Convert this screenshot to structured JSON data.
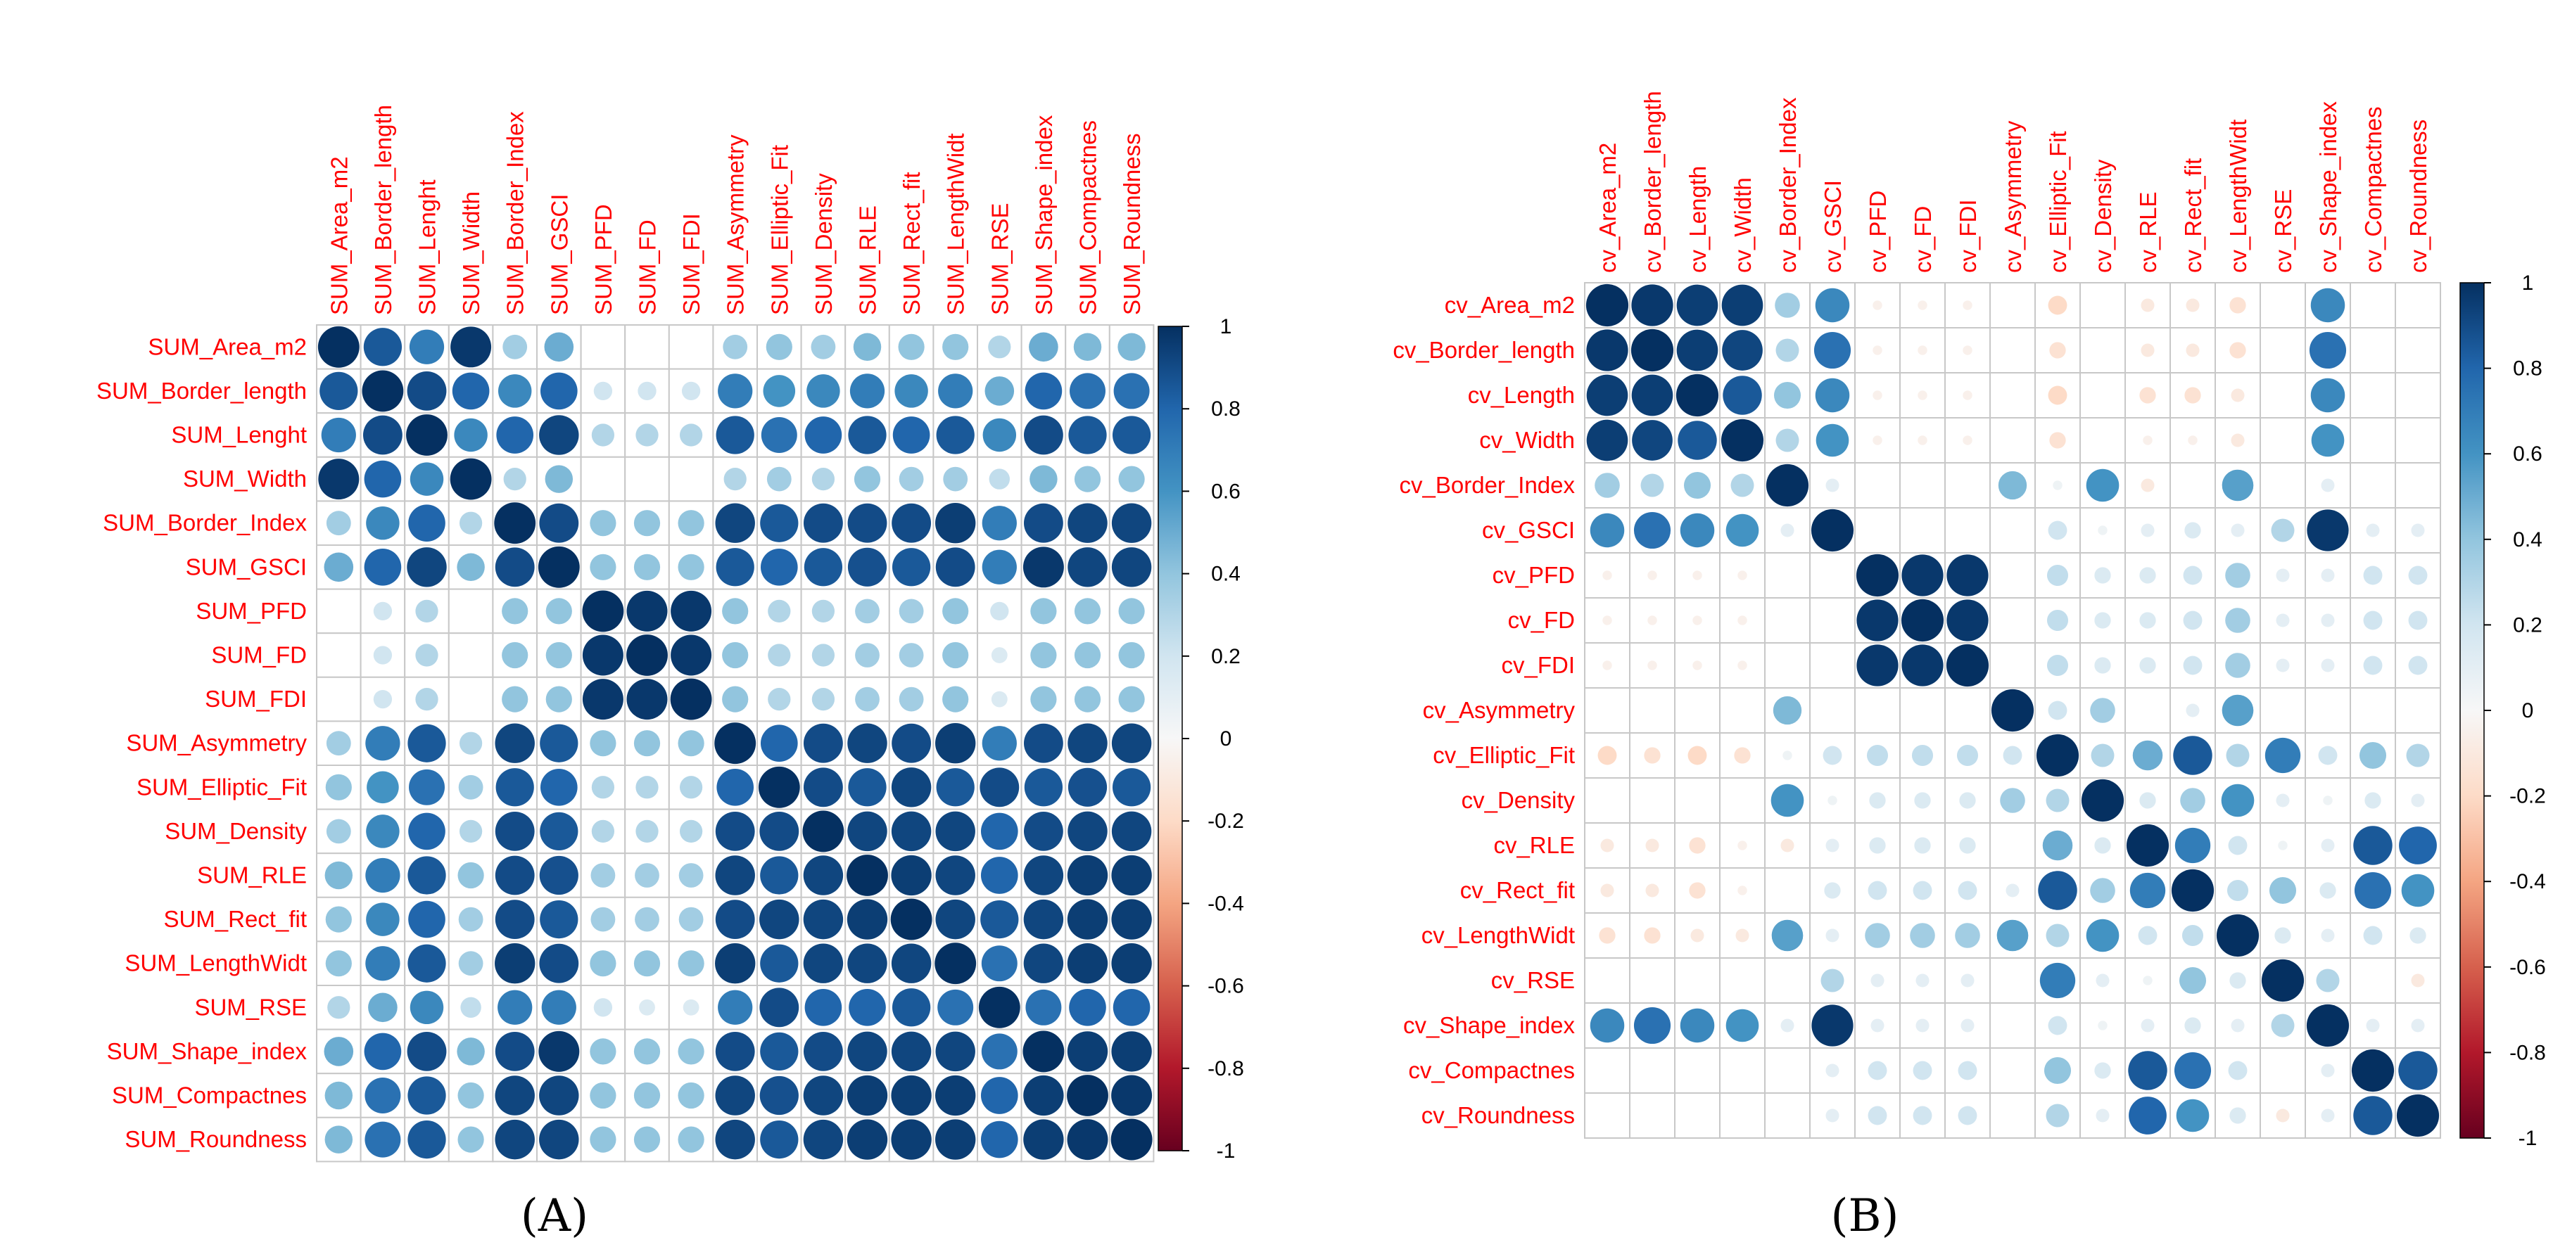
{
  "chart_data": [
    {
      "type": "heatmap",
      "panel_label": "(A)",
      "variables": [
        "SUM_Area_m2",
        "SUM_Border_length",
        "SUM_Lenght",
        "SUM_Width",
        "SUM_Border_Index",
        "SUM_GSCI",
        "SUM_PFD",
        "SUM_FD",
        "SUM_FDI",
        "SUM_Asymmetry",
        "SUM_Elliptic_Fit",
        "SUM_Density",
        "SUM_RLE",
        "SUM_Rect_fit",
        "SUM_LengthWidt",
        "SUM_RSE",
        "SUM_Shape_index",
        "SUM_Compactnes",
        "SUM_Roundness"
      ],
      "colorbar_ticks": [
        "1",
        "0.8",
        "0.6",
        "0.4",
        "0.2",
        "0",
        "-0.2",
        "-0.4",
        "-0.6",
        "-0.8",
        "-1"
      ],
      "value_range": [
        -1,
        1
      ],
      "matrix": [
        [
          1.0,
          0.85,
          0.7,
          0.97,
          0.35,
          0.5,
          0.0,
          0.0,
          0.0,
          0.35,
          0.4,
          0.35,
          0.45,
          0.4,
          0.4,
          0.3,
          0.5,
          0.45,
          0.45
        ],
        [
          0.85,
          1.0,
          0.9,
          0.8,
          0.65,
          0.8,
          0.2,
          0.2,
          0.2,
          0.7,
          0.6,
          0.65,
          0.7,
          0.65,
          0.7,
          0.5,
          0.8,
          0.75,
          0.75
        ],
        [
          0.7,
          0.9,
          1.0,
          0.65,
          0.8,
          0.92,
          0.3,
          0.3,
          0.3,
          0.85,
          0.75,
          0.8,
          0.85,
          0.8,
          0.85,
          0.65,
          0.9,
          0.85,
          0.85
        ],
        [
          0.97,
          0.8,
          0.65,
          1.0,
          0.3,
          0.45,
          0.0,
          0.0,
          0.0,
          0.3,
          0.35,
          0.3,
          0.4,
          0.35,
          0.35,
          0.25,
          0.45,
          0.4,
          0.4
        ],
        [
          0.35,
          0.65,
          0.8,
          0.3,
          1.0,
          0.9,
          0.4,
          0.4,
          0.4,
          0.92,
          0.85,
          0.9,
          0.9,
          0.9,
          0.95,
          0.7,
          0.9,
          0.92,
          0.92
        ],
        [
          0.5,
          0.8,
          0.92,
          0.45,
          0.9,
          1.0,
          0.4,
          0.4,
          0.4,
          0.85,
          0.8,
          0.85,
          0.88,
          0.85,
          0.9,
          0.7,
          0.97,
          0.92,
          0.92
        ],
        [
          0.0,
          0.2,
          0.3,
          0.0,
          0.4,
          0.4,
          1.0,
          0.97,
          0.97,
          0.4,
          0.3,
          0.3,
          0.35,
          0.35,
          0.4,
          0.2,
          0.4,
          0.4,
          0.4
        ],
        [
          0.0,
          0.2,
          0.3,
          0.0,
          0.4,
          0.4,
          0.97,
          1.0,
          0.97,
          0.4,
          0.3,
          0.3,
          0.35,
          0.35,
          0.4,
          0.15,
          0.4,
          0.4,
          0.4
        ],
        [
          0.0,
          0.2,
          0.3,
          0.0,
          0.4,
          0.4,
          0.97,
          0.97,
          1.0,
          0.4,
          0.3,
          0.3,
          0.35,
          0.35,
          0.4,
          0.15,
          0.4,
          0.4,
          0.4
        ],
        [
          0.35,
          0.7,
          0.85,
          0.3,
          0.92,
          0.85,
          0.4,
          0.4,
          0.4,
          1.0,
          0.8,
          0.9,
          0.92,
          0.9,
          0.95,
          0.7,
          0.9,
          0.92,
          0.92
        ],
        [
          0.4,
          0.6,
          0.75,
          0.35,
          0.85,
          0.8,
          0.3,
          0.3,
          0.3,
          0.8,
          1.0,
          0.9,
          0.85,
          0.92,
          0.85,
          0.9,
          0.85,
          0.88,
          0.85
        ],
        [
          0.35,
          0.65,
          0.8,
          0.3,
          0.9,
          0.85,
          0.3,
          0.3,
          0.3,
          0.9,
          0.9,
          1.0,
          0.92,
          0.92,
          0.92,
          0.8,
          0.9,
          0.92,
          0.92
        ],
        [
          0.45,
          0.7,
          0.85,
          0.4,
          0.9,
          0.88,
          0.35,
          0.35,
          0.35,
          0.92,
          0.85,
          0.92,
          1.0,
          0.95,
          0.92,
          0.8,
          0.92,
          0.95,
          0.95
        ],
        [
          0.4,
          0.65,
          0.8,
          0.35,
          0.9,
          0.85,
          0.35,
          0.35,
          0.35,
          0.9,
          0.92,
          0.92,
          0.95,
          1.0,
          0.92,
          0.85,
          0.92,
          0.95,
          0.95
        ],
        [
          0.4,
          0.7,
          0.85,
          0.35,
          0.95,
          0.9,
          0.4,
          0.4,
          0.4,
          0.95,
          0.85,
          0.92,
          0.92,
          0.92,
          1.0,
          0.75,
          0.92,
          0.95,
          0.95
        ],
        [
          0.3,
          0.5,
          0.65,
          0.25,
          0.7,
          0.7,
          0.2,
          0.15,
          0.15,
          0.7,
          0.9,
          0.8,
          0.8,
          0.85,
          0.75,
          1.0,
          0.75,
          0.8,
          0.8
        ],
        [
          0.5,
          0.8,
          0.9,
          0.45,
          0.9,
          0.97,
          0.4,
          0.4,
          0.4,
          0.9,
          0.85,
          0.9,
          0.92,
          0.92,
          0.92,
          0.75,
          1.0,
          0.95,
          0.95
        ],
        [
          0.45,
          0.75,
          0.85,
          0.4,
          0.92,
          0.92,
          0.4,
          0.4,
          0.4,
          0.92,
          0.88,
          0.92,
          0.95,
          0.95,
          0.95,
          0.8,
          0.95,
          1.0,
          0.97
        ],
        [
          0.45,
          0.75,
          0.85,
          0.4,
          0.92,
          0.92,
          0.4,
          0.4,
          0.4,
          0.92,
          0.85,
          0.92,
          0.95,
          0.95,
          0.95,
          0.8,
          0.95,
          0.97,
          1.0
        ]
      ]
    },
    {
      "type": "heatmap",
      "panel_label": "(B)",
      "variables": [
        "cv_Area_m2",
        "cv_Border_length",
        "cv_Length",
        "cv_Width",
        "cv_Border_Index",
        "cv_GSCI",
        "cv_PFD",
        "cv_FD",
        "cv_FDI",
        "cv_Asymmetry",
        "cv_Elliptic_Fit",
        "cv_Density",
        "cv_RLE",
        "cv_Rect_fit",
        "cv_LengthWidt",
        "cv_RSE",
        "cv_Shape_index",
        "cv_Compactnes",
        "cv_Roundness"
      ],
      "colorbar_ticks": [
        "1",
        "0.8",
        "0.6",
        "0.4",
        "0.2",
        "0",
        "-0.2",
        "-0.4",
        "-0.6",
        "-0.8",
        "-1"
      ],
      "value_range": [
        -1,
        1
      ],
      "matrix": [
        [
          1.0,
          0.97,
          0.95,
          0.95,
          0.35,
          0.65,
          -0.05,
          -0.05,
          -0.05,
          0.0,
          -0.2,
          0.0,
          -0.1,
          -0.1,
          -0.15,
          0.0,
          0.65,
          0.0,
          0.0
        ],
        [
          0.97,
          1.0,
          0.95,
          0.92,
          0.3,
          0.75,
          -0.05,
          -0.05,
          -0.05,
          0.0,
          -0.15,
          0.0,
          -0.1,
          -0.1,
          -0.15,
          0.0,
          0.75,
          0.0,
          0.0
        ],
        [
          0.95,
          0.95,
          1.0,
          0.85,
          0.4,
          0.65,
          -0.05,
          -0.05,
          -0.05,
          0.0,
          -0.2,
          0.0,
          -0.15,
          -0.15,
          -0.1,
          0.0,
          0.65,
          0.0,
          0.0
        ],
        [
          0.95,
          0.92,
          0.85,
          1.0,
          0.3,
          0.6,
          -0.05,
          -0.05,
          -0.05,
          0.0,
          -0.15,
          0.0,
          -0.05,
          -0.05,
          -0.1,
          0.0,
          0.6,
          0.0,
          0.0
        ],
        [
          0.35,
          0.3,
          0.4,
          0.3,
          1.0,
          0.1,
          0.0,
          0.0,
          0.0,
          0.45,
          0.05,
          0.6,
          -0.1,
          0.0,
          0.55,
          0.0,
          0.1,
          0.0,
          0.0
        ],
        [
          0.65,
          0.75,
          0.65,
          0.6,
          0.1,
          1.0,
          0.0,
          0.0,
          0.0,
          0.0,
          0.2,
          0.05,
          0.1,
          0.15,
          0.1,
          0.3,
          0.97,
          0.1,
          0.1
        ],
        [
          -0.05,
          -0.05,
          -0.05,
          -0.05,
          0.0,
          0.0,
          1.0,
          0.97,
          0.97,
          0.0,
          0.25,
          0.15,
          0.15,
          0.2,
          0.35,
          0.1,
          0.1,
          0.2,
          0.2
        ],
        [
          -0.05,
          -0.05,
          -0.05,
          -0.05,
          0.0,
          0.0,
          0.97,
          1.0,
          0.97,
          0.0,
          0.25,
          0.15,
          0.15,
          0.2,
          0.35,
          0.1,
          0.1,
          0.2,
          0.2
        ],
        [
          -0.05,
          -0.05,
          -0.05,
          -0.05,
          0.0,
          0.0,
          0.97,
          0.97,
          1.0,
          0.0,
          0.25,
          0.15,
          0.15,
          0.2,
          0.35,
          0.1,
          0.1,
          0.2,
          0.2
        ],
        [
          0.0,
          0.0,
          0.0,
          0.0,
          0.45,
          0.0,
          0.0,
          0.0,
          0.0,
          1.0,
          0.2,
          0.35,
          0.0,
          0.1,
          0.55,
          0.0,
          0.0,
          0.0,
          0.0
        ],
        [
          -0.2,
          -0.15,
          -0.2,
          -0.15,
          0.05,
          0.2,
          0.25,
          0.25,
          0.25,
          0.2,
          1.0,
          0.3,
          0.5,
          0.85,
          0.3,
          0.7,
          0.2,
          0.4,
          0.3
        ],
        [
          0.0,
          0.0,
          0.0,
          0.0,
          0.6,
          0.05,
          0.15,
          0.15,
          0.15,
          0.35,
          0.3,
          1.0,
          0.15,
          0.35,
          0.6,
          0.1,
          0.05,
          0.15,
          0.1
        ],
        [
          -0.1,
          -0.1,
          -0.15,
          -0.05,
          -0.1,
          0.1,
          0.15,
          0.15,
          0.15,
          0.0,
          0.5,
          0.15,
          1.0,
          0.7,
          0.2,
          0.05,
          0.1,
          0.85,
          0.8
        ],
        [
          -0.1,
          -0.1,
          -0.15,
          -0.05,
          0.0,
          0.15,
          0.2,
          0.2,
          0.2,
          0.1,
          0.85,
          0.35,
          0.7,
          1.0,
          0.25,
          0.4,
          0.15,
          0.75,
          0.6
        ],
        [
          -0.15,
          -0.15,
          -0.1,
          -0.1,
          0.55,
          0.1,
          0.35,
          0.35,
          0.35,
          0.55,
          0.3,
          0.6,
          0.2,
          0.25,
          1.0,
          0.15,
          0.1,
          0.2,
          0.15
        ],
        [
          0.0,
          0.0,
          0.0,
          0.0,
          0.0,
          0.3,
          0.1,
          0.1,
          0.1,
          0.0,
          0.7,
          0.1,
          0.05,
          0.4,
          0.15,
          1.0,
          0.3,
          0.0,
          -0.1
        ],
        [
          0.65,
          0.75,
          0.65,
          0.6,
          0.1,
          0.97,
          0.1,
          0.1,
          0.1,
          0.0,
          0.2,
          0.05,
          0.1,
          0.15,
          0.1,
          0.3,
          1.0,
          0.1,
          0.1
        ],
        [
          0.0,
          0.0,
          0.0,
          0.0,
          0.0,
          0.1,
          0.2,
          0.2,
          0.2,
          0.0,
          0.4,
          0.15,
          0.85,
          0.75,
          0.2,
          0.0,
          0.1,
          1.0,
          0.85
        ],
        [
          0.0,
          0.0,
          0.0,
          0.0,
          0.0,
          0.1,
          0.2,
          0.2,
          0.2,
          0.0,
          0.3,
          0.1,
          0.8,
          0.6,
          0.15,
          -0.1,
          0.1,
          0.85,
          1.0
        ]
      ]
    }
  ]
}
